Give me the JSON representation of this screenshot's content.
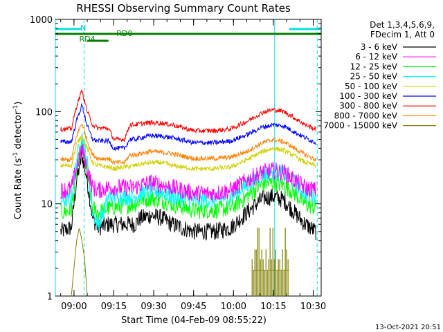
{
  "chart_data": {
    "type": "line",
    "title": "RHESSI Observing Summary Count Rates",
    "xlabel": "Start Time (04-Feb-09 08:55:22)",
    "ylabel_main": "Count Rate (s",
    "ylabel_sup1": "-1",
    "ylabel_mid": " detector",
    "ylabel_sup2": "-1",
    "ylabel_end": ")",
    "yscale": "log",
    "ylim": [
      1,
      1000
    ],
    "xlim": [
      -2,
      98
    ],
    "x_ticks": [
      {
        "t": 5,
        "label": "09:00"
      },
      {
        "t": 20,
        "label": "09:15"
      },
      {
        "t": 35,
        "label": "09:30"
      },
      {
        "t": 50,
        "label": "09:45"
      },
      {
        "t": 65,
        "label": "10:00"
      },
      {
        "t": 80,
        "label": "10:15"
      },
      {
        "t": 95,
        "label": "10:30"
      }
    ],
    "y_ticks": [
      {
        "v": 1,
        "label": "1"
      },
      {
        "v": 10,
        "label": "10"
      },
      {
        "v": 100,
        "label": "100"
      },
      {
        "v": 1000,
        "label": "1000"
      }
    ],
    "legend_header": [
      "Det 1,3,4,5,6,9,",
      "FDecim 1, Att 0"
    ],
    "series": [
      {
        "name": "3 - 6 keV",
        "color": "#000000",
        "points": [
          [
            0,
            5
          ],
          [
            4,
            5.5
          ],
          [
            6,
            18
          ],
          [
            8,
            34
          ],
          [
            10,
            18
          ],
          [
            12,
            7
          ],
          [
            14,
            5.5
          ],
          [
            18,
            6
          ],
          [
            24,
            6
          ],
          [
            28,
            6
          ],
          [
            30,
            7
          ],
          [
            34,
            7.5
          ],
          [
            38,
            7
          ],
          [
            42,
            6
          ],
          [
            50,
            5
          ],
          [
            58,
            5
          ],
          [
            64,
            5.5
          ],
          [
            70,
            8
          ],
          [
            76,
            11.5
          ],
          [
            80,
            12
          ],
          [
            84,
            11
          ],
          [
            88,
            8
          ],
          [
            92,
            6
          ],
          [
            96,
            5
          ]
        ]
      },
      {
        "name": "6 - 12 keV",
        "color": "#ff00ff",
        "points": [
          [
            0,
            14
          ],
          [
            4,
            14.5
          ],
          [
            6,
            25
          ],
          [
            8,
            40
          ],
          [
            10,
            24
          ],
          [
            12,
            15
          ],
          [
            14,
            14
          ],
          [
            18,
            15
          ],
          [
            24,
            15
          ],
          [
            28,
            15
          ],
          [
            30,
            16
          ],
          [
            34,
            17
          ],
          [
            38,
            16
          ],
          [
            42,
            15
          ],
          [
            50,
            13
          ],
          [
            58,
            13
          ],
          [
            64,
            14
          ],
          [
            70,
            18
          ],
          [
            76,
            22
          ],
          [
            80,
            23
          ],
          [
            84,
            22
          ],
          [
            88,
            18
          ],
          [
            92,
            15
          ],
          [
            96,
            14
          ]
        ]
      },
      {
        "name": "12 - 25 keV",
        "color": "#00ff00",
        "points": [
          [
            0,
            8
          ],
          [
            4,
            8.5
          ],
          [
            6,
            22
          ],
          [
            8,
            45
          ],
          [
            10,
            22
          ],
          [
            12,
            9
          ],
          [
            14,
            8
          ],
          [
            18,
            9
          ],
          [
            24,
            9.5
          ],
          [
            28,
            10
          ],
          [
            30,
            11
          ],
          [
            34,
            11.5
          ],
          [
            38,
            11
          ],
          [
            42,
            10
          ],
          [
            50,
            8.5
          ],
          [
            58,
            8.5
          ],
          [
            64,
            9
          ],
          [
            70,
            12
          ],
          [
            76,
            16.5
          ],
          [
            80,
            17
          ],
          [
            84,
            16
          ],
          [
            88,
            13
          ],
          [
            92,
            10
          ],
          [
            96,
            9
          ]
        ]
      },
      {
        "name": "25 - 50 keV",
        "color": "#00ffff",
        "points": [
          [
            0,
            11
          ],
          [
            4,
            11
          ],
          [
            6,
            30
          ],
          [
            8,
            55
          ],
          [
            10,
            28
          ],
          [
            12,
            8
          ],
          [
            14,
            6
          ],
          [
            16,
            8
          ],
          [
            18,
            12
          ],
          [
            24,
            12
          ],
          [
            28,
            12
          ],
          [
            30,
            13
          ],
          [
            34,
            14
          ],
          [
            38,
            13.5
          ],
          [
            42,
            12
          ],
          [
            50,
            11
          ],
          [
            58,
            11
          ],
          [
            64,
            12
          ],
          [
            70,
            16
          ],
          [
            76,
            21
          ],
          [
            80,
            22
          ],
          [
            84,
            21
          ],
          [
            88,
            17
          ],
          [
            92,
            13
          ],
          [
            96,
            12
          ]
        ]
      },
      {
        "name": "50 - 100 keV",
        "color": "#d0d000",
        "points": [
          [
            0,
            26
          ],
          [
            4,
            26
          ],
          [
            6,
            45
          ],
          [
            8,
            55
          ],
          [
            10,
            40
          ],
          [
            12,
            28
          ],
          [
            14,
            26
          ],
          [
            18,
            25
          ],
          [
            20,
            24
          ],
          [
            24,
            25
          ],
          [
            28,
            26
          ],
          [
            30,
            27
          ],
          [
            34,
            28
          ],
          [
            38,
            28
          ],
          [
            42,
            26
          ],
          [
            50,
            24
          ],
          [
            58,
            24
          ],
          [
            64,
            25
          ],
          [
            70,
            30
          ],
          [
            76,
            37
          ],
          [
            80,
            40
          ],
          [
            84,
            38
          ],
          [
            88,
            33
          ],
          [
            92,
            28
          ],
          [
            96,
            26
          ]
        ]
      },
      {
        "name": "100 - 300 keV",
        "color": "#0000ff",
        "points": [
          [
            0,
            47
          ],
          [
            4,
            47
          ],
          [
            6,
            80
          ],
          [
            8,
            118
          ],
          [
            10,
            70
          ],
          [
            12,
            50
          ],
          [
            14,
            48
          ],
          [
            18,
            48
          ],
          [
            20,
            40
          ],
          [
            24,
            40
          ],
          [
            26,
            50
          ],
          [
            28,
            50
          ],
          [
            30,
            52
          ],
          [
            34,
            55
          ],
          [
            38,
            54
          ],
          [
            42,
            52
          ],
          [
            50,
            46
          ],
          [
            58,
            46
          ],
          [
            64,
            48
          ],
          [
            70,
            56
          ],
          [
            76,
            68
          ],
          [
            80,
            72
          ],
          [
            84,
            70
          ],
          [
            88,
            60
          ],
          [
            92,
            52
          ],
          [
            96,
            46
          ]
        ]
      },
      {
        "name": "300 - 800 keV",
        "color": "#ff0000",
        "points": [
          [
            0,
            64
          ],
          [
            4,
            65
          ],
          [
            6,
            115
          ],
          [
            8,
            170
          ],
          [
            10,
            100
          ],
          [
            12,
            72
          ],
          [
            14,
            66
          ],
          [
            18,
            66
          ],
          [
            20,
            50
          ],
          [
            24,
            50
          ],
          [
            26,
            72
          ],
          [
            28,
            72
          ],
          [
            30,
            74
          ],
          [
            34,
            76
          ],
          [
            38,
            75
          ],
          [
            42,
            72
          ],
          [
            50,
            62
          ],
          [
            58,
            62
          ],
          [
            64,
            65
          ],
          [
            70,
            78
          ],
          [
            76,
            98
          ],
          [
            80,
            105
          ],
          [
            84,
            100
          ],
          [
            88,
            85
          ],
          [
            92,
            72
          ],
          [
            96,
            64
          ]
        ]
      },
      {
        "name": "800 - 7000 keV",
        "color": "#ff8000",
        "points": [
          [
            0,
            30
          ],
          [
            4,
            30
          ],
          [
            6,
            55
          ],
          [
            8,
            75
          ],
          [
            10,
            48
          ],
          [
            12,
            34
          ],
          [
            14,
            31
          ],
          [
            18,
            31
          ],
          [
            20,
            28
          ],
          [
            24,
            28
          ],
          [
            26,
            34
          ],
          [
            28,
            34
          ],
          [
            30,
            35
          ],
          [
            34,
            37
          ],
          [
            38,
            36
          ],
          [
            42,
            35
          ],
          [
            50,
            31
          ],
          [
            58,
            31
          ],
          [
            64,
            32
          ],
          [
            70,
            37
          ],
          [
            76,
            46
          ],
          [
            80,
            50
          ],
          [
            84,
            47
          ],
          [
            88,
            40
          ],
          [
            92,
            34
          ],
          [
            96,
            30
          ]
        ]
      },
      {
        "name": "7000 - 15000 keV",
        "color": "#808000",
        "points": [
          [
            4,
            1
          ],
          [
            5,
            2
          ],
          [
            6,
            4
          ],
          [
            7,
            5.5
          ],
          [
            8,
            4
          ],
          [
            9,
            2.5
          ],
          [
            10,
            1
          ]
        ]
      }
    ],
    "shaded_segments": [
      {
        "name": "7000 - 15000 keV",
        "t0": 72,
        "t1": 86,
        "values": [
          1.9,
          2.5,
          3.2,
          5.5
        ]
      }
    ],
    "annotations": {
      "n_label": "N",
      "rd0_label": "RD0",
      "rd4_label": "RD4",
      "timestamp": "13-Oct-2021 20:51"
    },
    "night_bars": [
      {
        "t0": -2,
        "t1": 8
      },
      {
        "t0": 86,
        "t1": 98
      }
    ],
    "rd0_bar": {
      "t0": -2,
      "t1": 98
    },
    "rd4_bar": {
      "t0": 10,
      "t1": 18
    },
    "v_lines": [
      {
        "t": -2,
        "style": "solid"
      },
      {
        "t": 8.8,
        "style": "dashed"
      },
      {
        "t": 80.5,
        "style": "solid"
      },
      {
        "t": 96.5,
        "style": "dashed"
      }
    ]
  }
}
